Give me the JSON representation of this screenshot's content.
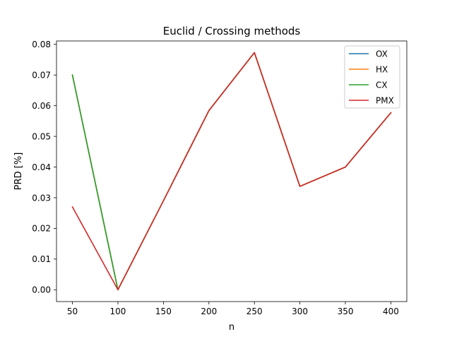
{
  "chart_data": {
    "type": "line",
    "title": "Euclid / Crossing methods",
    "xlabel": "n",
    "ylabel": "PRD [%]",
    "x": [
      50,
      100,
      150,
      200,
      250,
      300,
      350,
      400
    ],
    "xticks": [
      50,
      100,
      150,
      200,
      250,
      300,
      350,
      400
    ],
    "xtick_labels": [
      "50",
      "100",
      "150",
      "200",
      "250",
      "300",
      "350",
      "400"
    ],
    "yticks": [
      0,
      0.01,
      0.02,
      0.03,
      0.04,
      0.05,
      0.06,
      0.07,
      0.08
    ],
    "ytick_labels": [
      "0.00",
      "0.01",
      "0.02",
      "0.03",
      "0.04",
      "0.05",
      "0.06",
      "0.07",
      "0.08"
    ],
    "xlim": [
      32.5,
      417.5
    ],
    "ylim": [
      -0.00385,
      0.0811
    ],
    "grid": false,
    "legend_position": "top-right",
    "series": [
      {
        "name": "OX",
        "color": "#1f77b4",
        "values": [
          0.07,
          0.0,
          0.029,
          0.0584,
          0.0773,
          0.0337,
          0.04,
          0.0577
        ]
      },
      {
        "name": "HX",
        "color": "#ff7f0e",
        "values": [
          0.07,
          0.0,
          0.029,
          0.0584,
          0.0773,
          0.0337,
          0.04,
          0.0577
        ]
      },
      {
        "name": "CX",
        "color": "#2ca02c",
        "values": [
          0.07,
          0.0,
          0.029,
          0.0584,
          0.0773,
          0.0337,
          0.04,
          0.0577
        ]
      },
      {
        "name": "PMX",
        "color": "#d62728",
        "values": [
          0.027,
          0.0,
          0.029,
          0.0584,
          0.0773,
          0.0337,
          0.04,
          0.0577
        ]
      }
    ]
  }
}
